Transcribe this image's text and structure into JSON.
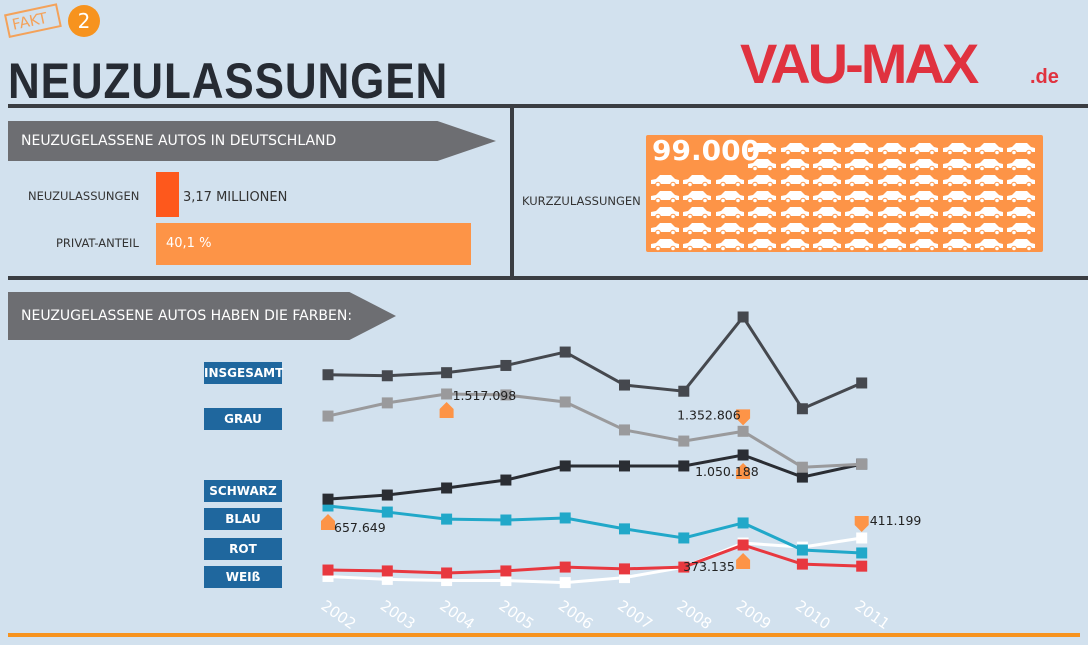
{
  "badge": {
    "label": "FAKT",
    "number": "2"
  },
  "title": "NEUZULASSUNGEN",
  "section1": {
    "header": "NEUZUGELASSENE AUTOS IN DEUTSCHLAND",
    "rows": [
      {
        "label": "NEUZULASSUNGEN",
        "value": "3,17 MILLIONEN",
        "color": "#fe581c"
      },
      {
        "label": "PRIVAT-ANTEIL",
        "value": "40,1 %",
        "percent": 40.1,
        "color": "#fd9447"
      }
    ]
  },
  "section2": {
    "label": "KURZZULASSUNGEN",
    "value": "99.000",
    "icon": "car-icon",
    "color": "#fd9447"
  },
  "section3": {
    "header": "NEUZUGELASSENE AUTOS HABEN DIE FARBEN:"
  },
  "chart_data": {
    "type": "line",
    "categories": [
      "2002",
      "2003",
      "2004",
      "2005",
      "2006",
      "2007",
      "2008",
      "2009",
      "2010",
      "2011"
    ],
    "series": [
      {
        "name": "INSGESAMT",
        "color": "#45484e",
        "values": [
          3250000,
          3240000,
          3270000,
          3340000,
          3470000,
          3150000,
          3090000,
          3810000,
          2920000,
          3170000
        ]
      },
      {
        "name": "GRAU",
        "color": "#9a9a9c",
        "values": [
          1420000,
          1478000,
          1517098,
          1513000,
          1482000,
          1359000,
          1310000,
          1352806,
          1195000,
          1208000
        ]
      },
      {
        "name": "SCHWARZ",
        "color": "#2a2d33",
        "values": [
          856000,
          874000,
          905000,
          940000,
          1002000,
          1002000,
          1002000,
          1050188,
          953000,
          1010000
        ]
      },
      {
        "name": "BLAU",
        "color": "#21a8c9",
        "values": [
          657649,
          631000,
          600000,
          596000,
          605000,
          557000,
          517000,
          583000,
          464000,
          451000
        ]
      },
      {
        "name": "ROT",
        "color": "#e8383f",
        "values": [
          263000,
          259000,
          250000,
          259000,
          276000,
          268000,
          276000,
          373135,
          289000,
          280000
        ]
      },
      {
        "name": "WEIß",
        "color": "#ffffff",
        "values": [
          242000,
          229000,
          224000,
          224000,
          215000,
          237000,
          283000,
          389000,
          371000,
          411199
        ]
      }
    ],
    "annotations": [
      {
        "text": "1.352.806",
        "series": "GRAU",
        "x": "2009"
      },
      {
        "text": "1.517.098",
        "series": "GRAU",
        "x": "2004"
      },
      {
        "text": "1.050.188",
        "series": "SCHWARZ",
        "x": "2009"
      },
      {
        "text": "657.649",
        "series": "BLAU",
        "x": "2002"
      },
      {
        "text": "373.135",
        "series": "ROT",
        "x": "2009"
      },
      {
        "text": "411.199",
        "series": "WEIß",
        "x": "2011"
      }
    ],
    "marker_color": "#fd9447",
    "grid": false
  },
  "logo": {
    "main": "VAU-MAX",
    "suffix": ".de",
    "color": "#e0323f"
  },
  "accent": "#f7931e"
}
